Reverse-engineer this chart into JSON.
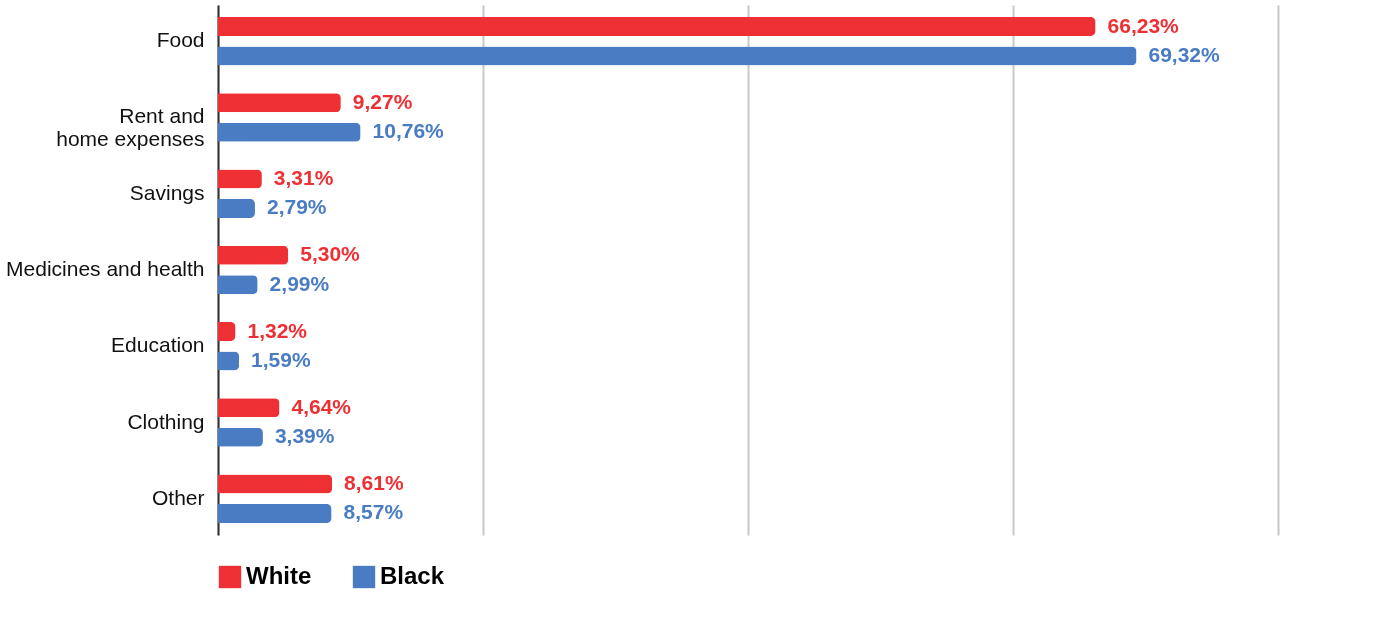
{
  "chart_data": {
    "type": "bar",
    "orientation": "horizontal",
    "categories": [
      "Food",
      "Rent and\nhome expenses",
      "Savings",
      "Medicines and health",
      "Education",
      "Clothing",
      "Other"
    ],
    "series": [
      {
        "name": "White",
        "color": "#ee3034",
        "values": [
          66.23,
          9.27,
          3.31,
          5.3,
          1.32,
          4.64,
          8.61
        ],
        "value_labels": [
          "66,23%",
          "9,27%",
          "3,31%",
          "5,30%",
          "1,32%",
          "4,64%",
          "8,61%"
        ]
      },
      {
        "name": "Black",
        "color": "#4a7cc4",
        "values": [
          69.32,
          10.76,
          2.79,
          2.99,
          1.59,
          3.39,
          8.57
        ],
        "value_labels": [
          "69,32%",
          "10,76%",
          "2,79%",
          "2,99%",
          "1,59%",
          "3,39%",
          "8,57%"
        ]
      }
    ],
    "xlim": [
      0,
      80
    ],
    "xticks": [
      {
        "value": 0,
        "label": null
      },
      {
        "value": 20,
        "label": null
      },
      {
        "value": 40,
        "label": null
      },
      {
        "value": 60,
        "label": null
      },
      {
        "value": 80,
        "label": null
      }
    ],
    "grid": "x",
    "legend": "bottom",
    "tick_labels": "y"
  }
}
